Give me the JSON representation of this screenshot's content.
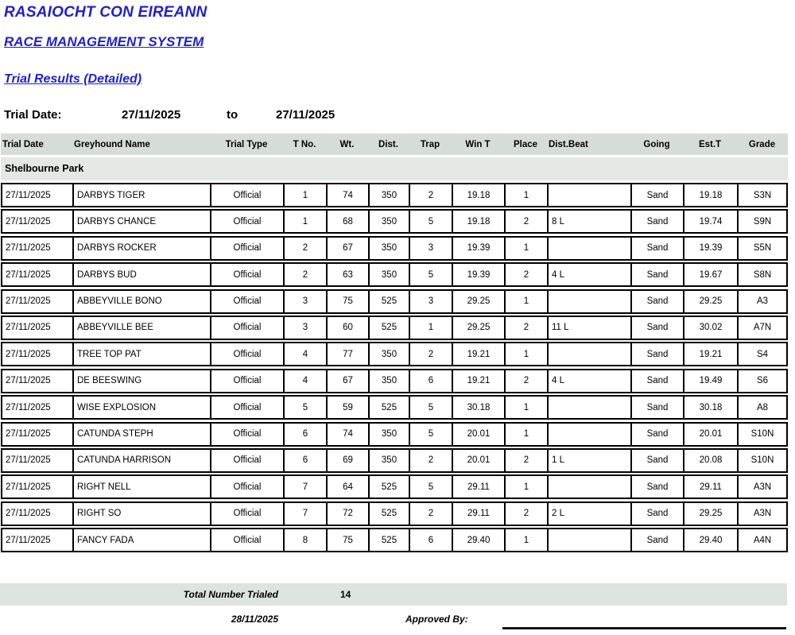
{
  "header": {
    "org_title": "RASAIOCHT CON EIREANN",
    "system_title": "RACE MANAGEMENT SYSTEM",
    "report_title": "Trial Results (Detailed)"
  },
  "filter": {
    "label": "Trial Date:",
    "from_date": "27/11/2025",
    "to_label": "to",
    "to_date": "27/11/2025"
  },
  "table": {
    "columns": [
      "Trial Date",
      "Greyhound Name",
      "Trial Type",
      "T No.",
      "Wt.",
      "Dist.",
      "Trap",
      "Win T",
      "Place",
      "Dist.Beat",
      "Going",
      "Est.T",
      "Grade"
    ],
    "group_header": "Shelbourne Park",
    "rows": [
      [
        "27/11/2025",
        "DARBYS TIGER",
        "Official",
        "1",
        "74",
        "350",
        "2",
        "19.18",
        "1",
        "",
        "Sand",
        "19.18",
        "S3N"
      ],
      [
        "27/11/2025",
        "DARBYS CHANCE",
        "Official",
        "1",
        "68",
        "350",
        "5",
        "19.18",
        "2",
        "8 L",
        "Sand",
        "19.74",
        "S9N"
      ],
      [
        "27/11/2025",
        "DARBYS ROCKER",
        "Official",
        "2",
        "67",
        "350",
        "3",
        "19.39",
        "1",
        "",
        "Sand",
        "19.39",
        "S5N"
      ],
      [
        "27/11/2025",
        "DARBYS BUD",
        "Official",
        "2",
        "63",
        "350",
        "5",
        "19.39",
        "2",
        "4 L",
        "Sand",
        "19.67",
        "S8N"
      ],
      [
        "27/11/2025",
        "ABBEYVILLE BONO",
        "Official",
        "3",
        "75",
        "525",
        "3",
        "29.25",
        "1",
        "",
        "Sand",
        "29.25",
        "A3"
      ],
      [
        "27/11/2025",
        "ABBEYVILLE BEE",
        "Official",
        "3",
        "60",
        "525",
        "1",
        "29.25",
        "2",
        "11 L",
        "Sand",
        "30.02",
        "A7N"
      ],
      [
        "27/11/2025",
        "TREE TOP PAT",
        "Official",
        "4",
        "77",
        "350",
        "2",
        "19.21",
        "1",
        "",
        "Sand",
        "19.21",
        "S4"
      ],
      [
        "27/11/2025",
        "DE BEESWING",
        "Official",
        "4",
        "67",
        "350",
        "6",
        "19.21",
        "2",
        "4 L",
        "Sand",
        "19.49",
        "S6"
      ],
      [
        "27/11/2025",
        "WISE EXPLOSION",
        "Official",
        "5",
        "59",
        "525",
        "5",
        "30.18",
        "1",
        "",
        "Sand",
        "30.18",
        "A8"
      ],
      [
        "27/11/2025",
        "CATUNDA STEPH",
        "Official",
        "6",
        "74",
        "350",
        "5",
        "20.01",
        "1",
        "",
        "Sand",
        "20.01",
        "S10N"
      ],
      [
        "27/11/2025",
        "CATUNDA HARRISON",
        "Official",
        "6",
        "69",
        "350",
        "2",
        "20.01",
        "2",
        "1 L",
        "Sand",
        "20.08",
        "S10N"
      ],
      [
        "27/11/2025",
        "RIGHT NELL",
        "Official",
        "7",
        "64",
        "525",
        "5",
        "29.11",
        "1",
        "",
        "Sand",
        "29.11",
        "A3N"
      ],
      [
        "27/11/2025",
        "RIGHT SO",
        "Official",
        "7",
        "72",
        "525",
        "2",
        "29.11",
        "2",
        "2 L",
        "Sand",
        "29.25",
        "A3N"
      ],
      [
        "27/11/2025",
        "FANCY FADA",
        "Official",
        "8",
        "75",
        "525",
        "6",
        "29.40",
        "1",
        "",
        "Sand",
        "29.40",
        "A4N"
      ]
    ]
  },
  "footer": {
    "total_label": "Total Number Trialed",
    "total_value": "14",
    "print_date": "28/11/2025",
    "approved_label": "Approved By:"
  },
  "colors": {
    "accent_blue": "#1f1fce",
    "header_band": "#d6ddd8",
    "group_band": "#e3e8e4",
    "footer_band": "#dde3de",
    "border": "#000000"
  }
}
